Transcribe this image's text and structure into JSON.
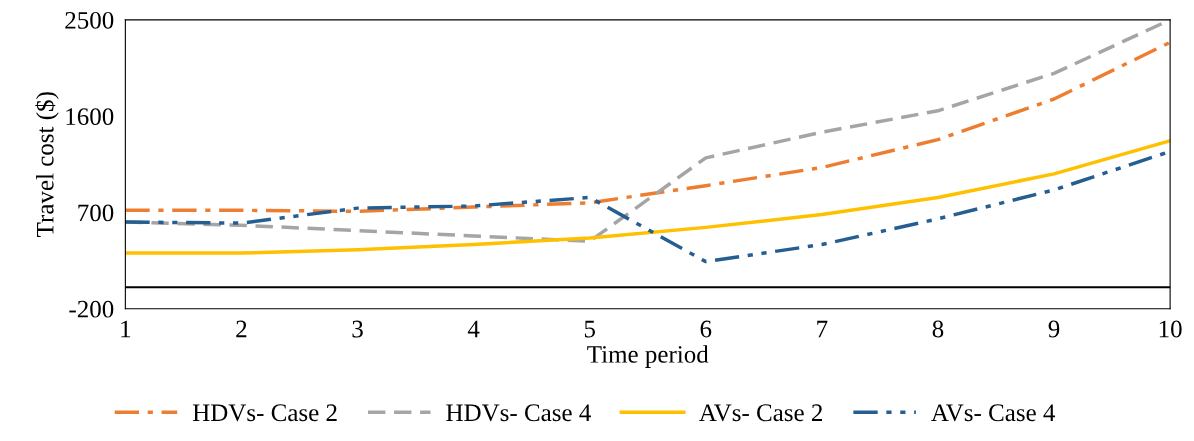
{
  "chart_data": {
    "type": "line",
    "xlabel": "Time period",
    "ylabel": "Travel cost ($)",
    "x": [
      1,
      2,
      3,
      4,
      5,
      6,
      7,
      8,
      9,
      10
    ],
    "xlim": [
      1,
      10
    ],
    "xticks": [
      1,
      2,
      3,
      4,
      5,
      6,
      7,
      8,
      9,
      10
    ],
    "ylim": [
      -200,
      2500
    ],
    "yticks": [
      -200,
      700,
      1600,
      2500
    ],
    "grid": false,
    "legend": "bottom",
    "marker": "none",
    "ref_lines": [
      {
        "axis": "y",
        "value": 0,
        "color": "#000000",
        "line_style": "solid"
      }
    ],
    "series": [
      {
        "name": "HDVs- Case 2",
        "color": "#ed7d31",
        "line_style": "dashdot",
        "values": [
          720,
          720,
          710,
          750,
          790,
          950,
          1120,
          1380,
          1760,
          2290
        ]
      },
      {
        "name": "HDVs- Case 4",
        "color": "#a5a5a5",
        "line_style": "dashed",
        "values": [
          610,
          580,
          530,
          480,
          430,
          1210,
          1450,
          1650,
          2000,
          2500
        ]
      },
      {
        "name": "AVs- Case 2",
        "color": "#ffc000",
        "line_style": "solid",
        "values": [
          320,
          320,
          350,
          400,
          460,
          560,
          680,
          840,
          1060,
          1370
        ]
      },
      {
        "name": "AVs- Case 4",
        "color": "#255e91",
        "line_style": "dashdotdot",
        "values": [
          610,
          600,
          740,
          760,
          840,
          240,
          400,
          640,
          910,
          1270
        ]
      }
    ]
  }
}
